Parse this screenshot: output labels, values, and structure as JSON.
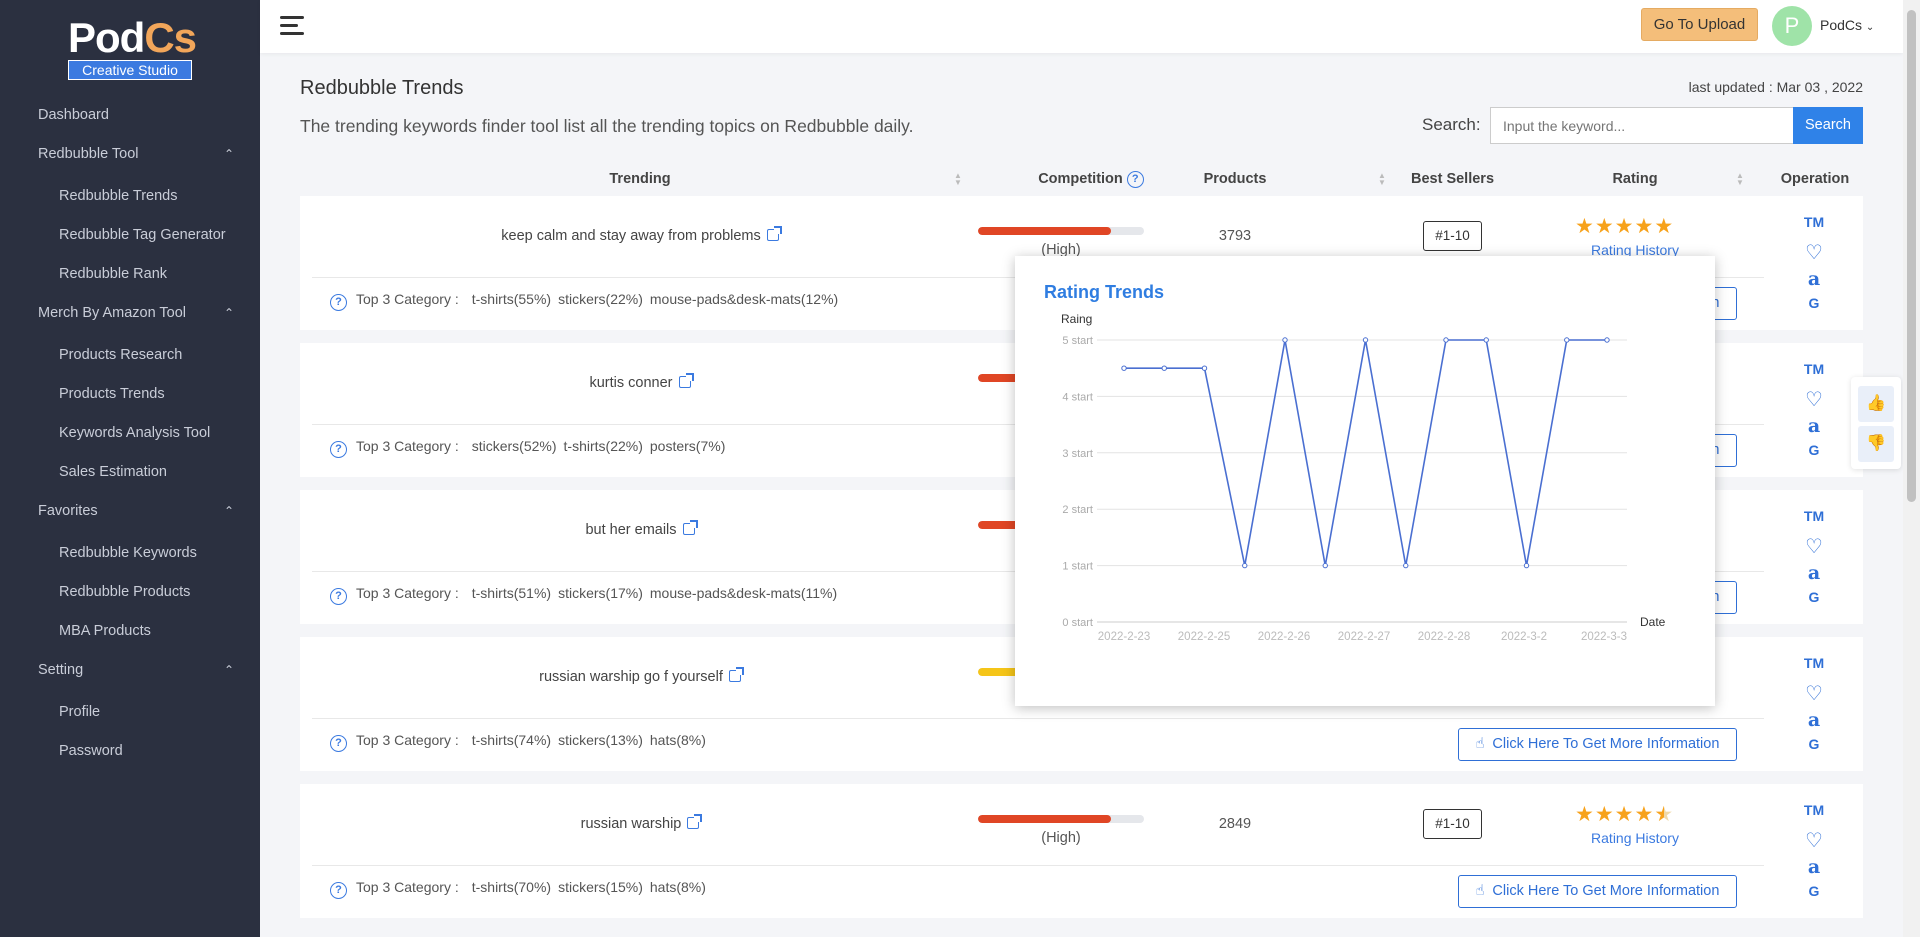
{
  "brand": {
    "logo_left": "Pod",
    "logo_right": "Cs",
    "subtitle": "Creative Studio"
  },
  "sidebar": {
    "items": [
      {
        "label": "Dashboard",
        "type": "top"
      },
      {
        "label": "Redbubble Tool",
        "type": "group"
      },
      {
        "label": "Redbubble Trends",
        "type": "sub"
      },
      {
        "label": "Redbubble Tag Generator",
        "type": "sub"
      },
      {
        "label": "Redbubble Rank",
        "type": "sub"
      },
      {
        "label": "Merch By Amazon Tool",
        "type": "group"
      },
      {
        "label": "Products Research",
        "type": "sub"
      },
      {
        "label": "Products Trends",
        "type": "sub"
      },
      {
        "label": "Keywords Analysis Tool",
        "type": "sub"
      },
      {
        "label": "Sales Estimation",
        "type": "sub"
      },
      {
        "label": "Favorites",
        "type": "group"
      },
      {
        "label": "Redbubble Keywords",
        "type": "sub"
      },
      {
        "label": "Redbubble Products",
        "type": "sub"
      },
      {
        "label": "MBA Products",
        "type": "sub"
      },
      {
        "label": "Setting",
        "type": "group"
      },
      {
        "label": "Profile",
        "type": "sub"
      },
      {
        "label": "Password",
        "type": "sub"
      }
    ]
  },
  "topbar": {
    "upload_label": "Go To Upload",
    "avatar_initial": "P",
    "user_name": "PodCs"
  },
  "page": {
    "title": "Redbubble Trends",
    "description": "The trending keywords finder tool list all the trending topics on Redbubble daily.",
    "last_updated": "last updated : Mar 03 , 2022",
    "search_label": "Search:",
    "search_placeholder": "Input the keyword...",
    "search_button": "Search"
  },
  "table": {
    "headers": {
      "trending": "Trending",
      "competition": "Competition",
      "products": "Products",
      "best_sellers": "Best Sellers",
      "rating": "Rating",
      "operation": "Operation"
    },
    "category_title": "Top 3 Category :",
    "more_label": "Click Here To Get More Information",
    "rating_history_label": "Rating History",
    "ops": {
      "tm": "TM",
      "heart": "♡",
      "amazon": "a",
      "google": "G"
    },
    "rows": [
      {
        "keyword": "keep calm and stay away from problems",
        "competition_level": 0.8,
        "competition_color": "#e04625",
        "competition_label": "(High)",
        "products": "3793",
        "best_seller": "#1-10",
        "rating": 5,
        "categories": [
          "t-shirts(55%)",
          "stickers(22%)",
          "mouse-pads&desk-mats(12%)"
        ]
      },
      {
        "keyword": "kurtis conner",
        "competition_level": 0.8,
        "competition_color": "#e04625",
        "competition_label": "",
        "products": "",
        "best_seller": "",
        "rating": 0,
        "categories": [
          "stickers(52%)",
          "t-shirts(22%)",
          "posters(7%)"
        ]
      },
      {
        "keyword": "but her emails",
        "competition_level": 0.8,
        "competition_color": "#e04625",
        "competition_label": "",
        "products": "",
        "best_seller": "",
        "rating": 0,
        "categories": [
          "t-shirts(51%)",
          "stickers(17%)",
          "mouse-pads&desk-mats(11%)"
        ]
      },
      {
        "keyword": "russian warship go f yourself",
        "competition_level": 0.8,
        "competition_color": "#f5c518",
        "competition_label": "",
        "products": "",
        "best_seller": "",
        "rating": 0,
        "categories": [
          "t-shirts(74%)",
          "stickers(13%)",
          "hats(8%)"
        ]
      },
      {
        "keyword": "russian warship",
        "competition_level": 0.8,
        "competition_color": "#e04625",
        "competition_label": "(High)",
        "products": "2849",
        "best_seller": "#1-10",
        "rating": 4.5,
        "categories": [
          "t-shirts(70%)",
          "stickers(15%)",
          "hats(8%)"
        ]
      }
    ]
  },
  "popover": {
    "title": "Rating Trends"
  },
  "chart_data": {
    "type": "line",
    "title": "Rating Trends",
    "ylabel": "Raing",
    "xlabel": "Date",
    "ylim": [
      0,
      5
    ],
    "y_ticks": [
      "0 start",
      "1 start",
      "2 start",
      "3 start",
      "4 start",
      "5 start"
    ],
    "x_tick_labels": [
      "2022-2-23",
      "2022-2-25",
      "2022-2-26",
      "2022-2-27",
      "2022-2-28",
      "2022-3-2",
      "2022-3-3"
    ],
    "values": [
      4.5,
      4.5,
      4.5,
      1,
      5,
      1,
      5,
      1,
      5,
      5,
      1,
      5,
      5
    ],
    "color": "#4a6fd1",
    "grid": true
  }
}
